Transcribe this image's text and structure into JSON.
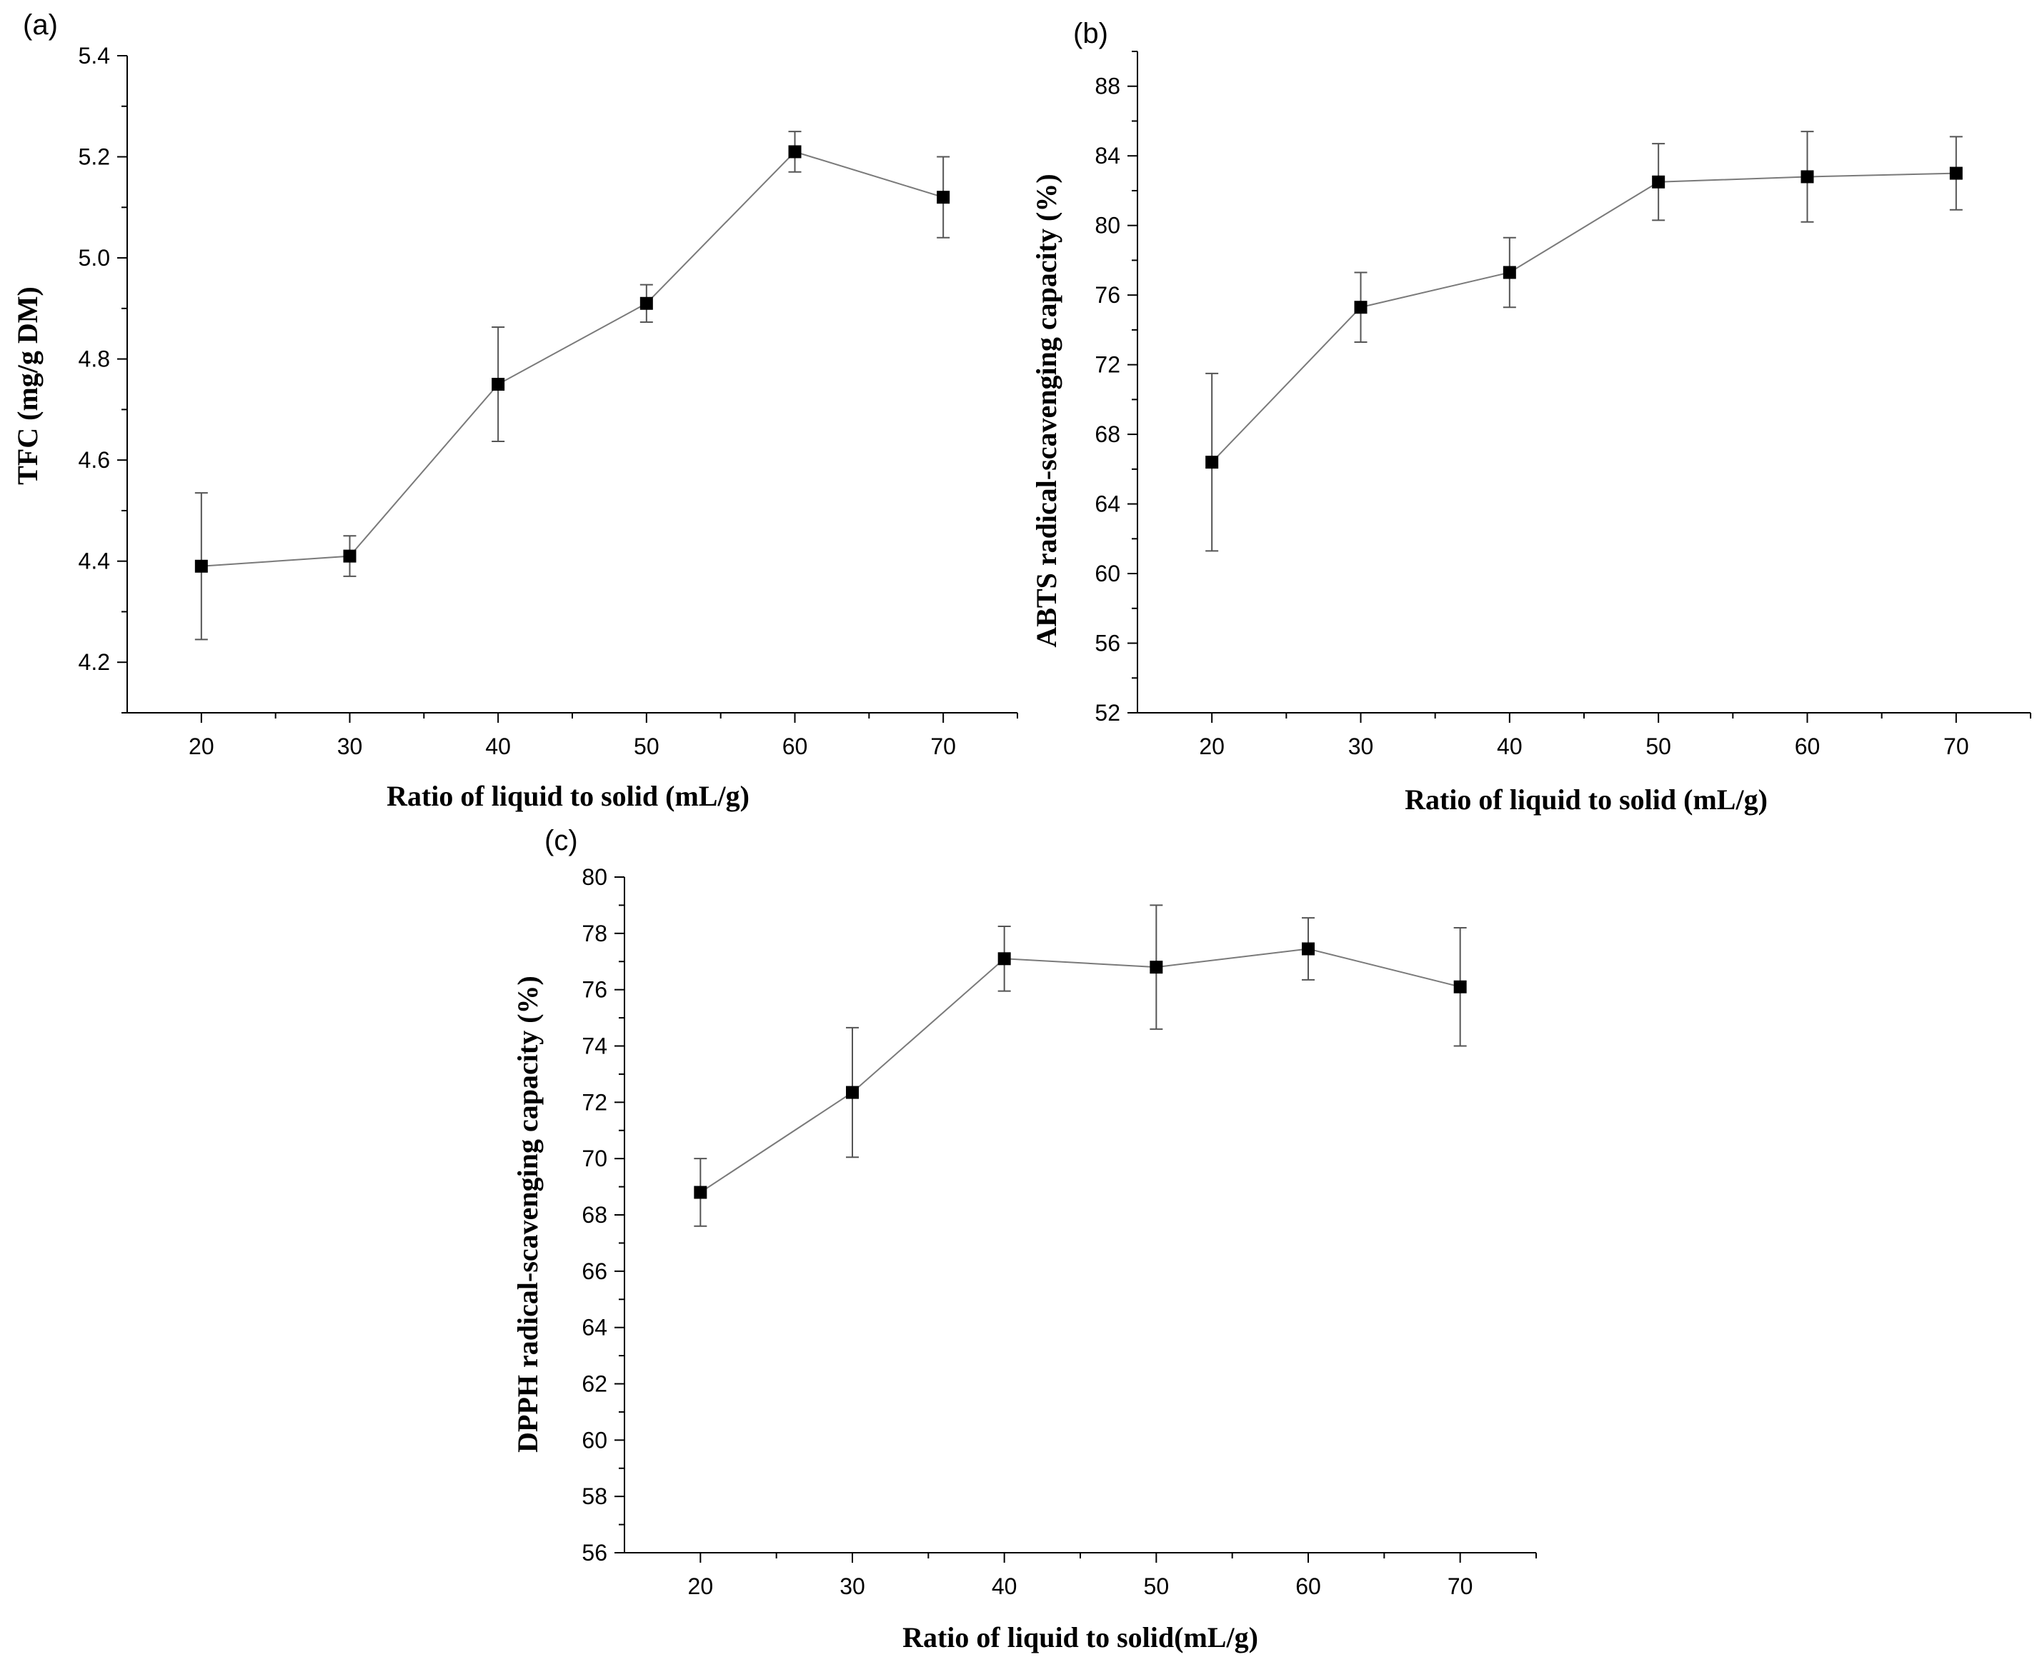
{
  "chart_data": [
    {
      "id": "a",
      "panel_label": "(a)",
      "type": "line",
      "title": "",
      "xlabel": "Ratio of liquid to solid (mL/g)",
      "ylabel": "TFC (mg/g DM)",
      "x": [
        20,
        30,
        40,
        50,
        60,
        70
      ],
      "xlim": [
        15,
        75
      ],
      "xticks": [
        20,
        30,
        40,
        50,
        60,
        70
      ],
      "xtick_labels": [
        "20",
        "30",
        "40",
        "50",
        "60",
        "70"
      ],
      "ylim": [
        4.1,
        5.4
      ],
      "yticks": [
        4.2,
        4.4,
        4.6,
        4.8,
        5.0,
        5.2,
        5.4
      ],
      "ytick_labels": [
        "4.2",
        "4.4",
        "4.6",
        "4.8",
        "5.0",
        "5.2",
        "5.4"
      ],
      "series": [
        {
          "name": "TFC",
          "values": [
            4.39,
            4.41,
            4.75,
            4.91,
            5.21,
            5.12
          ],
          "error": [
            0.145,
            0.04,
            0.113,
            0.037,
            0.04,
            0.08
          ]
        }
      ],
      "grid": false,
      "legend": "none",
      "color": "#000000",
      "line_color": "#7a7a7a"
    },
    {
      "id": "b",
      "panel_label": "(b)",
      "type": "line",
      "title": "",
      "xlabel": "Ratio of liquid to solid (mL/g)",
      "ylabel": "ABTS radical-scavenging capacity (%)",
      "x": [
        20,
        30,
        40,
        50,
        60,
        70
      ],
      "xlim": [
        15,
        75
      ],
      "xticks": [
        20,
        30,
        40,
        50,
        60,
        70
      ],
      "xtick_labels": [
        "20",
        "30",
        "40",
        "50",
        "60",
        "70"
      ],
      "ylim": [
        52,
        90
      ],
      "yticks": [
        52,
        56,
        60,
        64,
        68,
        72,
        76,
        80,
        84,
        88
      ],
      "ytick_labels": [
        "52",
        "56",
        "60",
        "64",
        "68",
        "72",
        "76",
        "80",
        "84",
        "88"
      ],
      "series": [
        {
          "name": "ABTS",
          "values": [
            66.4,
            75.3,
            77.3,
            82.5,
            82.8,
            83.0
          ],
          "error": [
            5.1,
            2.0,
            2.0,
            2.2,
            2.6,
            2.1
          ]
        }
      ],
      "grid": false,
      "legend": "none",
      "color": "#000000",
      "line_color": "#7a7a7a"
    },
    {
      "id": "c",
      "panel_label": "(c)",
      "type": "line",
      "title": "",
      "xlabel": "Ratio of liquid to solid(mL/g)",
      "ylabel": "DPPH radical-scavenging capacity (%)",
      "x": [
        20,
        30,
        40,
        50,
        60,
        70
      ],
      "xlim": [
        15,
        75
      ],
      "xticks": [
        20,
        30,
        40,
        50,
        60,
        70
      ],
      "xtick_labels": [
        "20",
        "30",
        "40",
        "50",
        "60",
        "70"
      ],
      "ylim": [
        56,
        80
      ],
      "yticks": [
        56,
        58,
        60,
        62,
        64,
        66,
        68,
        70,
        72,
        74,
        76,
        78,
        80
      ],
      "ytick_labels": [
        "56",
        "58",
        "60",
        "62",
        "64",
        "66",
        "68",
        "70",
        "72",
        "74",
        "76",
        "78",
        "80"
      ],
      "series": [
        {
          "name": "DPPH",
          "values": [
            68.8,
            72.35,
            77.1,
            76.8,
            77.45,
            76.1
          ],
          "error": [
            1.2,
            2.3,
            1.15,
            2.2,
            1.1,
            2.1
          ]
        }
      ],
      "grid": false,
      "legend": "none",
      "color": "#000000",
      "line_color": "#7a7a7a"
    }
  ]
}
